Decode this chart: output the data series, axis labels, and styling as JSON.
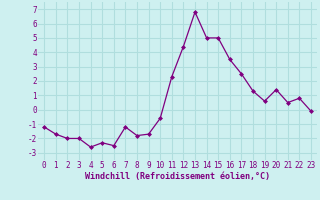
{
  "x": [
    0,
    1,
    2,
    3,
    4,
    5,
    6,
    7,
    8,
    9,
    10,
    11,
    12,
    13,
    14,
    15,
    16,
    17,
    18,
    19,
    20,
    21,
    22,
    23
  ],
  "y": [
    -1.2,
    -1.7,
    -2.0,
    -2.0,
    -2.6,
    -2.3,
    -2.5,
    -1.2,
    -1.8,
    -1.7,
    -0.6,
    2.3,
    4.4,
    6.8,
    5.0,
    5.0,
    3.5,
    2.5,
    1.3,
    0.6,
    1.4,
    0.5,
    0.8,
    -0.1
  ],
  "line_color": "#800080",
  "marker": "D",
  "marker_size": 2.0,
  "linewidth": 0.9,
  "xlabel": "Windchill (Refroidissement éolien,°C)",
  "xlabel_fontsize": 6.0,
  "xlabel_color": "#800080",
  "ylabel_ticks": [
    -3,
    -2,
    -1,
    0,
    1,
    2,
    3,
    4,
    5,
    6,
    7
  ],
  "xlim": [
    -0.5,
    23.5
  ],
  "ylim": [
    -3.5,
    7.5
  ],
  "bg_color": "#cef0f0",
  "grid_color": "#b0dede",
  "tick_color": "#800080",
  "tick_fontsize": 5.5,
  "xtick_labels": [
    "0",
    "1",
    "2",
    "3",
    "4",
    "5",
    "6",
    "7",
    "8",
    "9",
    "10",
    "11",
    "12",
    "13",
    "14",
    "15",
    "16",
    "17",
    "18",
    "19",
    "20",
    "21",
    "22",
    "23"
  ]
}
